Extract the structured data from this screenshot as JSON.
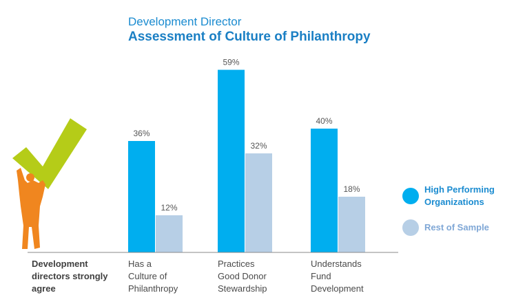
{
  "chart_data": {
    "type": "bar",
    "title": "Assessment of Culture of Philanthropy",
    "subtitle": "Development Director",
    "row_label": "Development directors strongly agree",
    "categories": [
      {
        "label": "Has a\nCulture of\nPhilanthropy"
      },
      {
        "label": "Practices\nGood Donor\nStewardship"
      },
      {
        "label": "Understands\nFund\nDevelopment"
      }
    ],
    "series": [
      {
        "name": "High Performing\nOrganizations",
        "color": "#00aeef",
        "values": [
          36,
          59,
          40
        ],
        "labels": [
          "36%",
          "59%",
          "40%"
        ]
      },
      {
        "name": "Rest of Sample",
        "color": "#b7cfe6",
        "values": [
          12,
          32,
          18
        ],
        "labels": [
          "12%",
          "32%",
          "18%"
        ]
      }
    ],
    "unit": "%",
    "ylim": [
      0,
      60
    ],
    "legend_position": "right",
    "grid": false,
    "decoration_icons": [
      "checkmark-icon",
      "person-icon"
    ]
  }
}
